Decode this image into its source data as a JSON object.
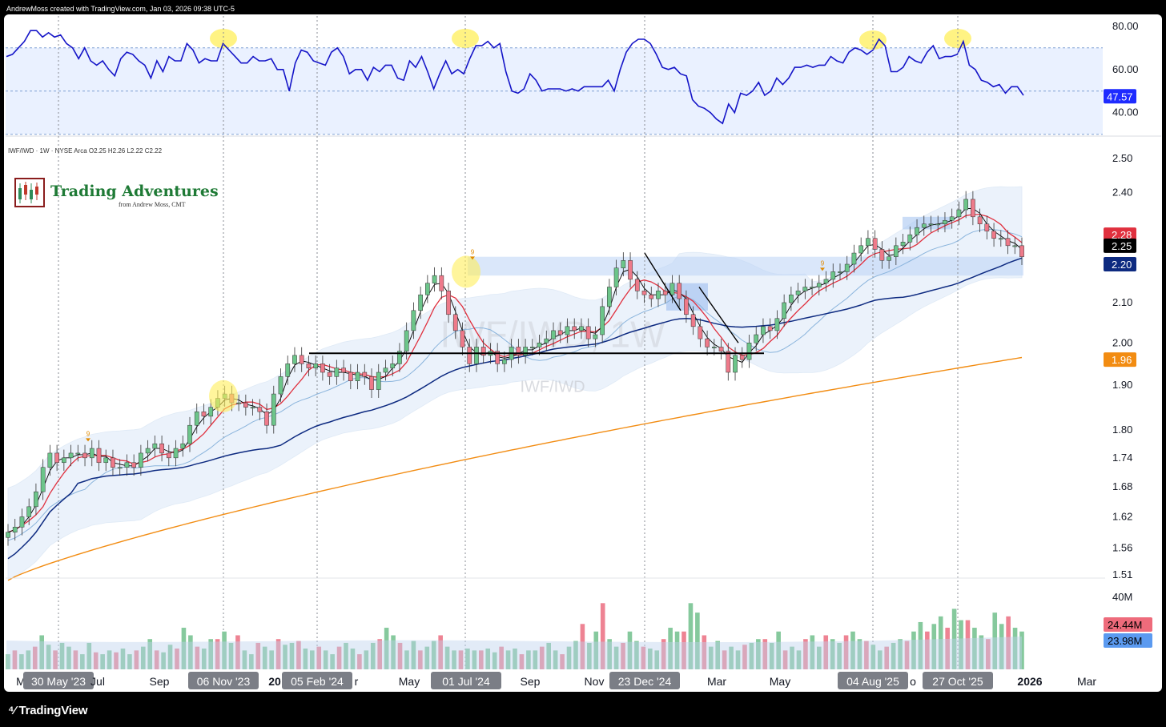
{
  "header": {
    "created_by": "AndrewMoss created with TradingView.com, Jan 03, 2026 09:38 UTC-5"
  },
  "symbol_line": "IWF/IWD · 1W · NYSE Arca  O2.25  H2.26  L2.22  C2.22",
  "watermark": {
    "big": "IWF/IWD, 1W",
    "small": "IWF/IWD"
  },
  "logo": {
    "title": "Trading Adventures",
    "subtitle": "from Andrew Moss, CMT"
  },
  "footer": {
    "brand": "TradingView"
  },
  "colors": {
    "rsi_line": "#1515c8",
    "up_candle": "#6cc58a",
    "down_candle": "#ee7a8a",
    "ma_red": "#e0303e",
    "ma_black": "#000000",
    "ma_navy": "#0d2a80",
    "ma_orange": "#f28c12",
    "ma_lightblue": "#8ab4dc",
    "highlight": "#ffef5a",
    "volume_up": "#86c99d",
    "volume_down": "#ee8393"
  },
  "chart_data": [
    {
      "type": "line",
      "name": "RSI",
      "ylim": [
        31,
        84
      ],
      "ticks": [
        "80.00",
        "60.00",
        "40.00"
      ],
      "tick_values": [
        80,
        60,
        40
      ],
      "reference_levels": [
        70,
        50,
        30
      ],
      "current_label": "47.57",
      "values": [
        66,
        67,
        70,
        73,
        78,
        78,
        75,
        77,
        75,
        76,
        72,
        70,
        65,
        70,
        64,
        62,
        64,
        60,
        57,
        65,
        68,
        67,
        64,
        62,
        56,
        64,
        59,
        66,
        64,
        64,
        72,
        69,
        63,
        65,
        64,
        64,
        72,
        69,
        66,
        63,
        63,
        66,
        64,
        64,
        65,
        60,
        60,
        50,
        63,
        69,
        68,
        64,
        63,
        62,
        68,
        70,
        66,
        58,
        60,
        60,
        55,
        61,
        59,
        62,
        62,
        56,
        55,
        64,
        61,
        66,
        59,
        51,
        58,
        64,
        58,
        60,
        58,
        65,
        71,
        71,
        73,
        70,
        72,
        59,
        50,
        49,
        51,
        58,
        55,
        50,
        51,
        51,
        51,
        50,
        51,
        50,
        52,
        52,
        52,
        52,
        55,
        50,
        60,
        68,
        72,
        74,
        74,
        72,
        67,
        61,
        60,
        61,
        58,
        57,
        46,
        43,
        42,
        40,
        37,
        35,
        44,
        40,
        49,
        48,
        50,
        54,
        48,
        50,
        56,
        53,
        56,
        61,
        61,
        62,
        61,
        62,
        62,
        66,
        64,
        63,
        68,
        70,
        69,
        67,
        69,
        74,
        71,
        59,
        59,
        61,
        66,
        64,
        63,
        68,
        71,
        65,
        66,
        66,
        67,
        73,
        62,
        60,
        55,
        54,
        52,
        53,
        49,
        52,
        52,
        48
      ]
    },
    {
      "type": "candlestick",
      "name": "IWF/IWD · 1W",
      "ylim": [
        1.51,
        2.52
      ],
      "log_scale": true,
      "ticks": [
        "2.50",
        "2.40",
        "2.10",
        "2.00",
        "1.90",
        "1.80",
        "1.74",
        "1.68",
        "1.62",
        "1.56",
        "1.51"
      ],
      "tick_values": [
        2.5,
        2.4,
        2.1,
        2.0,
        1.9,
        1.8,
        1.74,
        1.68,
        1.62,
        1.56,
        1.51
      ],
      "axis_bubbles": [
        {
          "label": "2.28",
          "value": 2.28,
          "color": "#e0303e"
        },
        {
          "label": "2.25",
          "value": 2.25,
          "color": "#000000"
        },
        {
          "label": "2.20",
          "value": 2.2,
          "color": "#0d2a80"
        },
        {
          "label": "1.96",
          "value": 1.96,
          "color": "#f28c12"
        }
      ],
      "x_labels": [
        "M",
        "30 May '23",
        "Jul",
        "Sep",
        "06 Nov '23",
        "20",
        "05 Feb '24",
        "r",
        "May",
        "01 Jul '24",
        "Sep",
        "Nov",
        "23 Dec '24",
        "Mar",
        "May",
        "04 Aug '25",
        "o",
        "27 Oct '25",
        "2026",
        "Mar"
      ],
      "setup_markers": [
        "9",
        "9",
        "9"
      ],
      "moving_averages": [
        "fast black",
        "red",
        "light blue",
        "navy",
        "orange"
      ]
    },
    {
      "type": "bar",
      "name": "Volume",
      "ticks": [
        "40M"
      ],
      "labels": [
        {
          "label": "24.44M",
          "color": "#ee6b7b"
        },
        {
          "label": "23.98M",
          "color": "#5b9af0"
        }
      ]
    }
  ]
}
